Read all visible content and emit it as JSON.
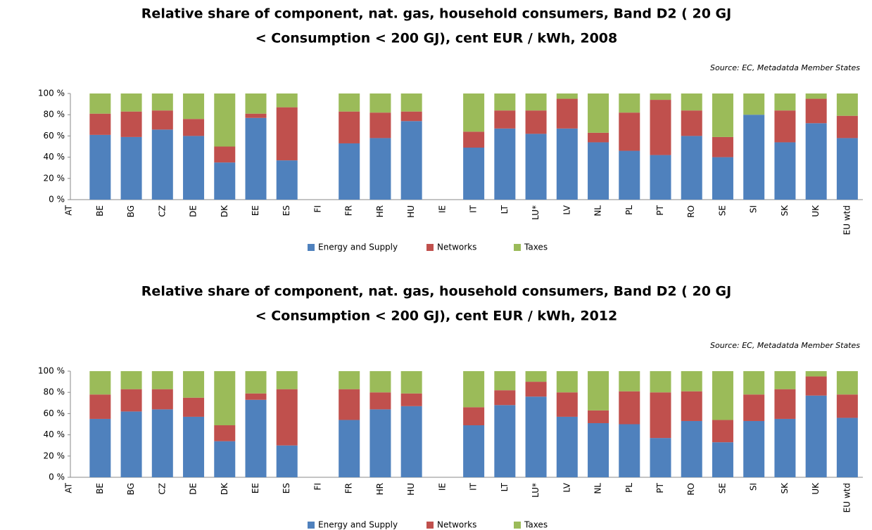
{
  "chart_data": [
    {
      "type": "bar",
      "stacked": true,
      "title": [
        "Relative share of component, nat. gas, household consumers, Band D2 (  20 GJ",
        "< Consumption < 200 GJ), cent EUR / kWh, 2008"
      ],
      "source": "Source:  EC, Metadatda  Member States",
      "categories": [
        "AT",
        "BE",
        "BG",
        "CZ",
        "DE",
        "DK",
        "EE",
        "ES",
        "FI",
        "FR",
        "HR",
        "HU",
        "IE",
        "IT",
        "LT",
        "LU*",
        "LV",
        "NL",
        "PL",
        "PT",
        "RO",
        "SE",
        "SI",
        "SK",
        "UK",
        "EU wtd"
      ],
      "series": [
        {
          "name": "Energy and Supply",
          "color": "#4f81bd",
          "values": [
            null,
            61,
            59,
            66,
            60,
            35,
            77,
            37,
            null,
            53,
            58,
            74,
            null,
            49,
            67,
            62,
            67,
            54,
            46,
            42,
            60,
            40,
            80,
            54,
            72,
            58
          ]
        },
        {
          "name": "Networks",
          "color": "#c0504d",
          "values": [
            null,
            20,
            24,
            18,
            16,
            15,
            4,
            50,
            null,
            30,
            24,
            9,
            null,
            15,
            17,
            22,
            28,
            9,
            36,
            52,
            24,
            19,
            0,
            30,
            23,
            21
          ]
        },
        {
          "name": "Taxes",
          "color": "#9bbb59",
          "values": [
            null,
            19,
            17,
            16,
            24,
            50,
            19,
            13,
            null,
            17,
            18,
            17,
            null,
            36,
            16,
            16,
            5,
            37,
            18,
            6,
            16,
            41,
            20,
            16,
            5,
            21
          ]
        }
      ],
      "ylim": [
        0,
        100
      ],
      "yticks": [
        {
          "value": 0,
          "label": "0 %"
        },
        {
          "value": 20,
          "label": "20 %"
        },
        {
          "value": 40,
          "label": "40 %"
        },
        {
          "value": 60,
          "label": "60 %"
        },
        {
          "value": 80,
          "label": "80 %"
        },
        {
          "value": 100,
          "label": "100 %"
        }
      ],
      "grid": false,
      "legend": "bottom"
    },
    {
      "type": "bar",
      "stacked": true,
      "title": [
        "Relative share of component, nat. gas, household consumers, Band D2 (  20 GJ",
        "< Consumption < 200 GJ), cent EUR / kWh, 2012"
      ],
      "source": "Source:  EC, Metadatda  Member States",
      "categories": [
        "AT",
        "BE",
        "BG",
        "CZ",
        "DE",
        "DK",
        "EE",
        "ES",
        "FI",
        "FR",
        "HR",
        "HU",
        "IE",
        "IT",
        "LT",
        "LU*",
        "LV",
        "NL",
        "PL",
        "PT",
        "RO",
        "SE",
        "SI",
        "SK",
        "UK",
        "EU wtd"
      ],
      "series": [
        {
          "name": "Energy and Supply",
          "color": "#4f81bd",
          "values": [
            null,
            55,
            62,
            64,
            57,
            34,
            73,
            30,
            null,
            54,
            64,
            67,
            null,
            49,
            68,
            76,
            57,
            51,
            50,
            37,
            53,
            33,
            53,
            55,
            77,
            56
          ]
        },
        {
          "name": "Networks",
          "color": "#c0504d",
          "values": [
            null,
            23,
            21,
            19,
            18,
            15,
            6,
            53,
            null,
            29,
            16,
            12,
            null,
            17,
            14,
            14,
            23,
            12,
            31,
            43,
            28,
            21,
            25,
            28,
            18,
            22
          ]
        },
        {
          "name": "Taxes",
          "color": "#9bbb59",
          "values": [
            null,
            22,
            17,
            17,
            25,
            51,
            21,
            17,
            null,
            17,
            20,
            21,
            null,
            34,
            18,
            10,
            20,
            37,
            19,
            20,
            19,
            46,
            22,
            17,
            5,
            22
          ]
        }
      ],
      "ylim": [
        0,
        100
      ],
      "yticks": [
        {
          "value": 0,
          "label": "0 %"
        },
        {
          "value": 20,
          "label": "20 %"
        },
        {
          "value": 40,
          "label": "40 %"
        },
        {
          "value": 60,
          "label": "60 %"
        },
        {
          "value": 80,
          "label": "80 %"
        },
        {
          "value": 100,
          "label": "100 %"
        }
      ],
      "grid": false,
      "legend": "bottom"
    }
  ]
}
